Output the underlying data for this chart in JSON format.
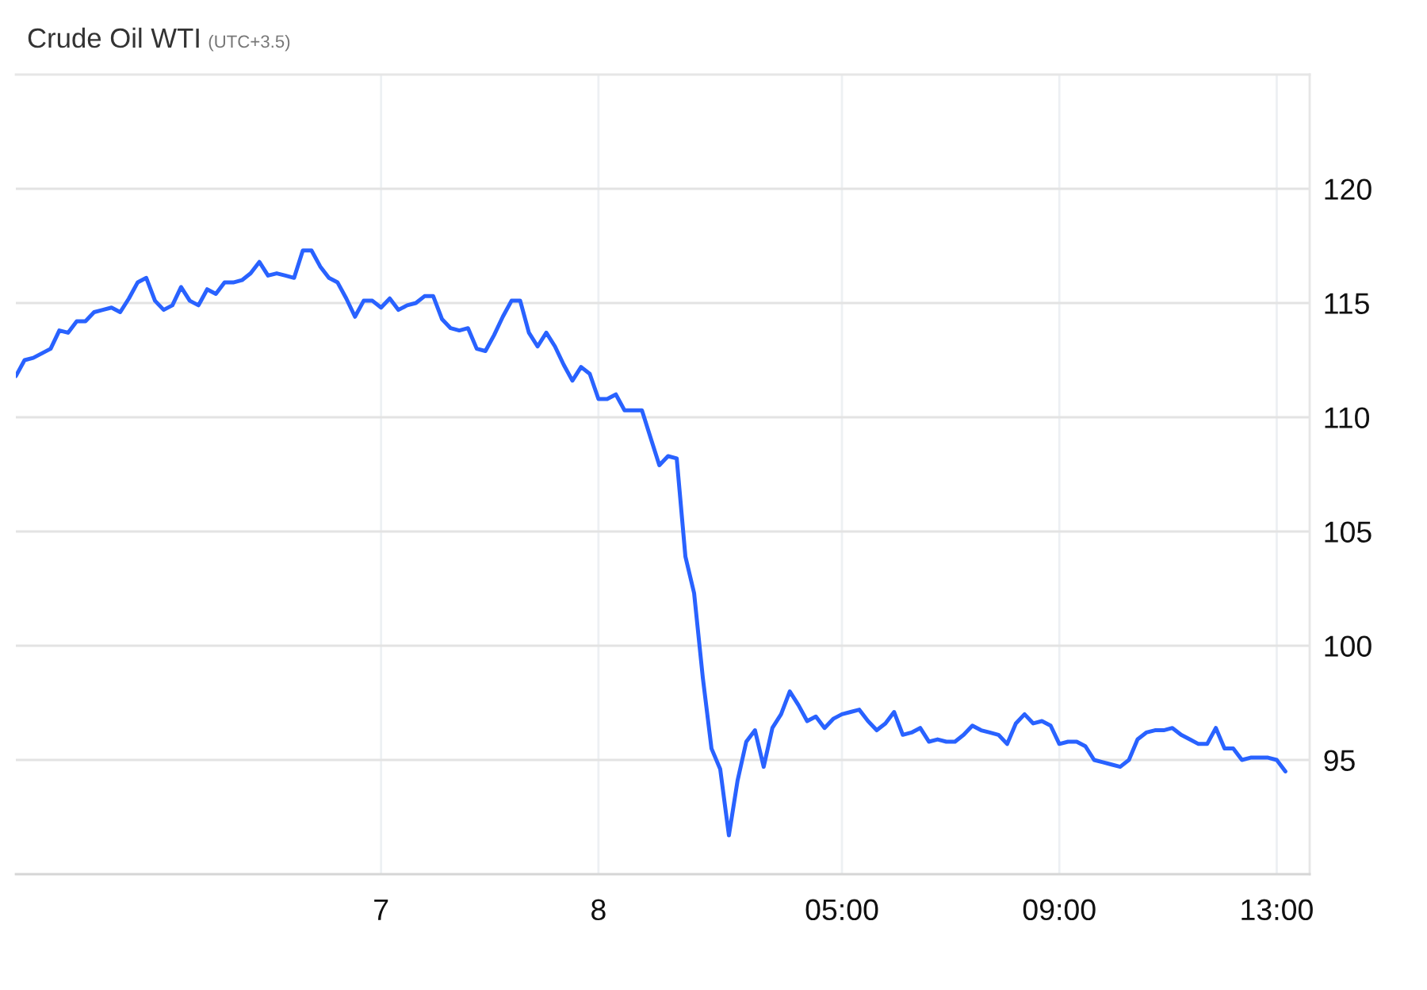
{
  "chart_data": {
    "type": "line",
    "title": "Crude Oil WTI",
    "subtitle": "(UTC+3.5)",
    "categories": [
      null,
      null,
      null,
      null,
      null,
      null,
      null,
      null,
      null,
      null,
      null,
      null,
      null,
      null,
      null,
      null,
      null,
      null,
      null,
      null,
      null,
      null,
      null,
      null,
      null,
      null,
      null,
      null,
      null,
      null,
      null,
      null,
      null,
      null,
      null,
      null,
      null,
      null,
      null,
      null,
      null,
      null,
      "7",
      null,
      null,
      null,
      null,
      null,
      null,
      null,
      null,
      null,
      null,
      null,
      null,
      null,
      null,
      null,
      null,
      null,
      null,
      null,
      null,
      null,
      null,
      null,
      null,
      "8",
      null,
      null,
      null,
      null,
      null,
      null,
      null,
      null,
      null,
      null,
      null,
      null,
      null,
      null,
      null,
      null,
      null,
      null,
      null,
      null,
      null,
      null,
      null,
      null,
      null,
      null,
      null,
      "05:00",
      null,
      null,
      null,
      null,
      null,
      null,
      null,
      null,
      null,
      null,
      null,
      null,
      null,
      null,
      null,
      null,
      null,
      null,
      null,
      null,
      null,
      null,
      null,
      null,
      "09:00",
      null,
      null,
      null,
      null,
      null,
      null,
      null,
      null,
      null,
      null,
      null,
      null,
      null,
      null,
      null,
      null,
      null,
      null,
      null,
      null,
      null,
      null,
      null,
      null,
      "13:00",
      null
    ],
    "series": [
      {
        "color": "#2962ff",
        "values": [
          111.8,
          112.5,
          112.6,
          112.8,
          113.0,
          113.8,
          113.7,
          114.2,
          114.2,
          114.6,
          114.7,
          114.8,
          114.6,
          115.2,
          115.9,
          116.1,
          115.1,
          114.7,
          114.9,
          115.7,
          115.1,
          114.9,
          115.6,
          115.4,
          115.9,
          115.9,
          116.0,
          116.3,
          116.8,
          116.2,
          116.3,
          116.2,
          116.1,
          117.3,
          117.3,
          116.6,
          116.1,
          115.9,
          115.2,
          114.4,
          115.1,
          115.1,
          114.8,
          115.2,
          114.7,
          114.9,
          115.0,
          115.3,
          115.3,
          114.3,
          113.9,
          113.8,
          113.9,
          113.0,
          112.9,
          113.6,
          114.4,
          115.1,
          115.1,
          113.7,
          113.1,
          113.7,
          113.1,
          112.3,
          111.6,
          112.2,
          111.9,
          110.8,
          110.8,
          111.0,
          110.3,
          110.3,
          110.3,
          109.1,
          107.9,
          108.3,
          108.2,
          103.9,
          102.3,
          98.6,
          95.5,
          94.6,
          91.7,
          94.1,
          95.8,
          96.3,
          94.7,
          96.4,
          97.0,
          98.0,
          97.4,
          96.7,
          96.9,
          96.4,
          96.8,
          97.0,
          97.1,
          97.2,
          96.7,
          96.3,
          96.6,
          97.1,
          96.1,
          96.2,
          96.4,
          95.8,
          95.9,
          95.8,
          95.8,
          96.1,
          96.5,
          96.3,
          96.2,
          96.1,
          95.7,
          96.6,
          97.0,
          96.6,
          96.7,
          96.5,
          95.7,
          95.8,
          95.8,
          95.6,
          95.0,
          94.9,
          94.8,
          94.7,
          95.0,
          95.9,
          96.2,
          96.3,
          96.3,
          96.4,
          96.1,
          95.9,
          95.7,
          95.7,
          96.4,
          95.5,
          95.5,
          95.0,
          95.1,
          95.1,
          95.1,
          95.0,
          94.5
        ]
      }
    ],
    "ylim": [
      90,
      125
    ],
    "yticks": [
      95,
      100,
      105,
      110,
      115,
      120
    ],
    "grid": true,
    "line_style": "solid"
  }
}
